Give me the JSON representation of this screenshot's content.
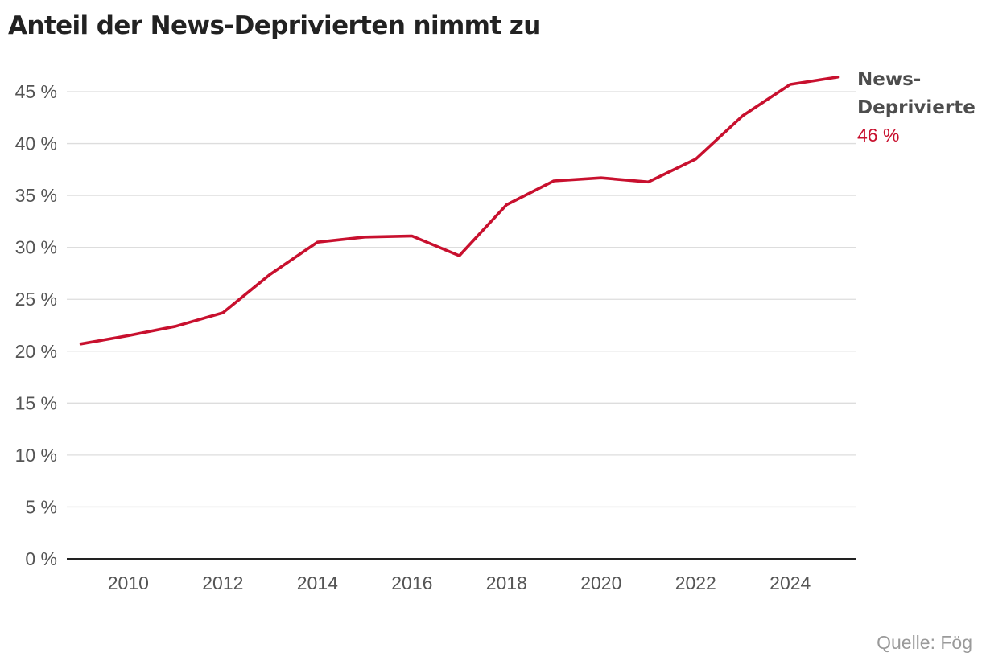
{
  "chart_data": {
    "type": "line",
    "title": "Anteil der News-Deprivierten nimmt zu",
    "xlabel": "",
    "ylabel": "",
    "x": [
      2009,
      2010,
      2011,
      2012,
      2013,
      2014,
      2015,
      2016,
      2017,
      2018,
      2019,
      2020,
      2021,
      2022,
      2023,
      2024,
      2025
    ],
    "series": [
      {
        "name_lines": [
          "News-",
          "Deprivierte"
        ],
        "end_label": "46 %",
        "color": "#c8102e",
        "values": [
          20.7,
          21.5,
          22.4,
          23.7,
          27.4,
          30.5,
          31.0,
          31.1,
          29.2,
          34.1,
          36.4,
          36.7,
          36.3,
          38.5,
          42.7,
          45.7,
          46.4
        ]
      }
    ],
    "ylim": [
      0,
      45
    ],
    "xlim": [
      2008.7,
      2025.4
    ],
    "y_ticks": [
      0,
      5,
      10,
      15,
      20,
      25,
      30,
      35,
      40,
      45
    ],
    "y_tick_labels": [
      "0 %",
      "5 %",
      "10 %",
      "15 %",
      "20 %",
      "25 %",
      "30 %",
      "35 %",
      "40 %",
      "45 %"
    ],
    "x_ticks": [
      2010,
      2012,
      2014,
      2016,
      2018,
      2020,
      2022,
      2024
    ],
    "x_tick_labels": [
      "2010",
      "2012",
      "2014",
      "2016",
      "2018",
      "2020",
      "2022",
      "2024"
    ],
    "grid": true,
    "grid_color": "#dddddd",
    "axis_color": "#222222",
    "source": "Quelle: Fög"
  }
}
